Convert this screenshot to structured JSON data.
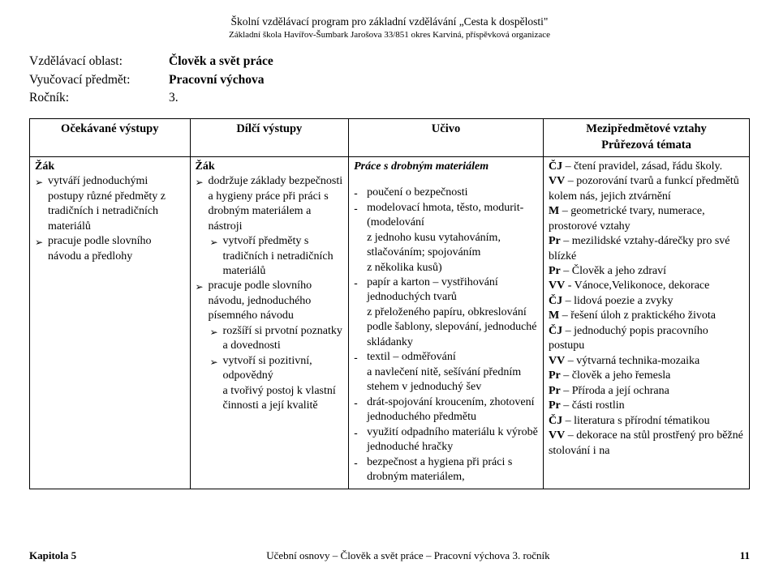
{
  "header": {
    "line1": "Školní vzdělávací program pro základní vzdělávání „Cesta k dospělosti\"",
    "line2": "Základní škola Havířov-Šumbark Jarošova 33/851 okres Karviná, příspěvková organizace"
  },
  "meta": {
    "labels": {
      "area": "Vzdělávací oblast:",
      "subject": "Vyučovací předmět:",
      "year": "Ročník:"
    },
    "values": {
      "area": "Člověk a svět práce",
      "subject": "Pracovní výchova",
      "year": "3."
    }
  },
  "table": {
    "headers": {
      "c1": "Očekávané výstupy",
      "c2": "Dílčí výstupy",
      "c3": "Učivo",
      "c4": "Mezipředmětové vztahy\nPrůřezová témata"
    },
    "row": {
      "c1": {
        "lead": "Žák",
        "items": [
          {
            "lvl": 1,
            "m": "tri",
            "t": "vytváří jednoduchými postupy různé předměty z tradičních i netradičních materiálů"
          },
          {
            "lvl": 1,
            "m": "tri",
            "t": "pracuje podle slovního návodu a předlohy"
          }
        ]
      },
      "c2": {
        "lead": "Žák",
        "items": [
          {
            "lvl": 1,
            "m": "tri",
            "t": "dodržuje základy bezpečnosti a hygieny práce při práci s drobným materiálem a nástroji"
          },
          {
            "lvl": 2,
            "m": "tri",
            "t": "vytvoří předměty s tradičních i netradičních materiálů"
          },
          {
            "lvl": 1,
            "m": "tri",
            "t": "pracuje podle slovního návodu, jednoduchého písemného návodu"
          },
          {
            "lvl": 2,
            "m": "tri",
            "t": "rozšíří si prvotní poznatky a dovednosti"
          },
          {
            "lvl": 2,
            "m": "tri",
            "t": "vytvoří si pozitivní, odpovědný\na tvořivý postoj k vlastní činnosti a její kvalitě"
          }
        ]
      },
      "c3": {
        "lead": "Práce s drobným materiálem",
        "items": [
          {
            "lvl": 1,
            "m": "dash",
            "t": "poučení o bezpečnosti"
          },
          {
            "lvl": 1,
            "m": "dash",
            "t": "modelovací hmota, těsto, modurit-(modelování\nz jednoho kusu vytahováním, stlačováním; spojováním\nz několika kusů)"
          },
          {
            "lvl": 1,
            "m": "dash",
            "t": "papír a karton – vystřihování jednoduchých tvarů\nz přeloženého papíru, obkreslování podle šablony, slepování, jednoduché skládanky"
          },
          {
            "lvl": 1,
            "m": "dash",
            "t": "textil – odměřování\na navlečení nitě, sešívání předním stehem v jednoduchý šev"
          },
          {
            "lvl": 1,
            "m": "dash",
            "t": "drát-spojování kroucením, zhotovení jednoduchého předmětu"
          },
          {
            "lvl": 1,
            "m": "dash",
            "t": "využití odpadního materiálu k výrobě jednoduché hračky"
          },
          {
            "lvl": 1,
            "m": "dash",
            "t": "bezpečnost a hygiena při práci s drobným materiálem,"
          }
        ]
      },
      "c4": {
        "lines": [
          {
            "b": "ČJ",
            "t": " – čtení pravidel, zásad, řádu školy."
          },
          {
            "b": "VV",
            "t": " – pozorování tvarů a funkcí předmětů kolem nás, jejich ztvárnění"
          },
          {
            "b": "M",
            "t": " – geometrické tvary, numerace, prostorové vztahy"
          },
          {
            "b": "Pr",
            "t": " – mezilidské vztahy-dárečky pro své blízké"
          },
          {
            "b": "Pr",
            "t": " – Člověk a jeho zdraví"
          },
          {
            "b": "VV",
            "t": " - Vánoce,Velikonoce, dekorace"
          },
          {
            "b": "ČJ",
            "t": " – lidová poezie a zvyky"
          },
          {
            "b": "M",
            "t": " – řešení úloh z praktického života"
          },
          {
            "b": "ČJ",
            "t": " – jednoduchý popis pracovního postupu"
          },
          {
            "b": "VV",
            "t": " – výtvarná technika-mozaika"
          },
          {
            "b": "Pr",
            "t": " – člověk a jeho řemesla"
          },
          {
            "b": "Pr",
            "t": " – Příroda a její ochrana"
          },
          {
            "b": "Pr",
            "t": " – části rostlin"
          },
          {
            "b": "ČJ",
            "t": " – literatura s přírodní tématikou"
          },
          {
            "b": "VV",
            "t": " – dekorace na stůl prostřený pro běžné stolování i na"
          }
        ]
      }
    }
  },
  "footer": {
    "chapter": "Kapitola 5",
    "title": "Učební osnovy – Člověk a svět práce – Pracovní výchova 3. ročník",
    "page": "11"
  }
}
